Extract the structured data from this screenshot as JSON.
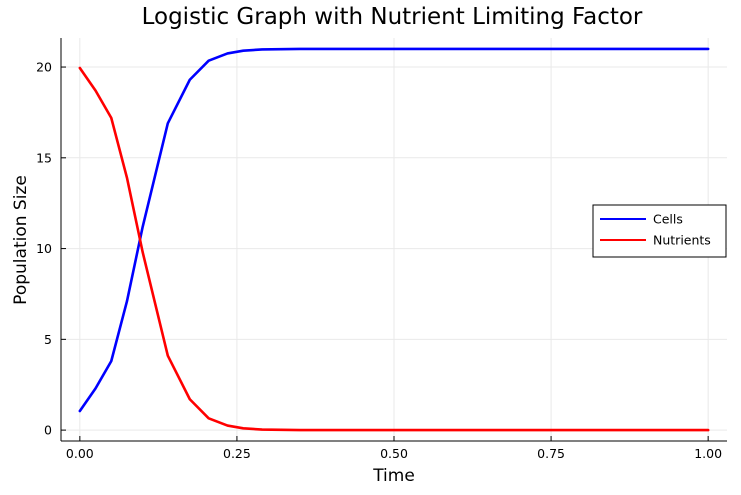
{
  "chart_data": {
    "type": "line",
    "title": "Logistic Graph with Nutrient Limiting Factor",
    "xlabel": "Time",
    "ylabel": "Population Size",
    "xlim": [
      -0.03,
      1.03
    ],
    "ylim": [
      -0.6,
      21.6
    ],
    "xticks": [
      0.0,
      0.25,
      0.5,
      0.75,
      1.0
    ],
    "xtick_labels": [
      "0.00",
      "0.25",
      "0.50",
      "0.75",
      "1.00"
    ],
    "yticks": [
      0,
      5,
      10,
      15,
      20
    ],
    "ytick_labels": [
      "0",
      "5",
      "10",
      "15",
      "20"
    ],
    "grid": true,
    "legend_position": "right",
    "x": [
      0.0,
      0.025,
      0.05,
      0.075,
      0.1,
      0.14,
      0.175,
      0.205,
      0.235,
      0.26,
      0.29,
      0.35,
      0.5,
      0.75,
      1.0
    ],
    "series": [
      {
        "name": "Cells",
        "color": "#0000ff",
        "values": [
          1.05,
          2.3,
          3.8,
          7.1,
          11.2,
          16.9,
          19.3,
          20.35,
          20.75,
          20.9,
          20.97,
          21.0,
          21.0,
          21.0,
          21.0
        ]
      },
      {
        "name": "Nutrients",
        "color": "#ff0000",
        "values": [
          19.95,
          18.7,
          17.2,
          13.9,
          9.8,
          4.1,
          1.7,
          0.65,
          0.25,
          0.1,
          0.03,
          0.0,
          0.0,
          0.0,
          0.0
        ]
      }
    ]
  }
}
